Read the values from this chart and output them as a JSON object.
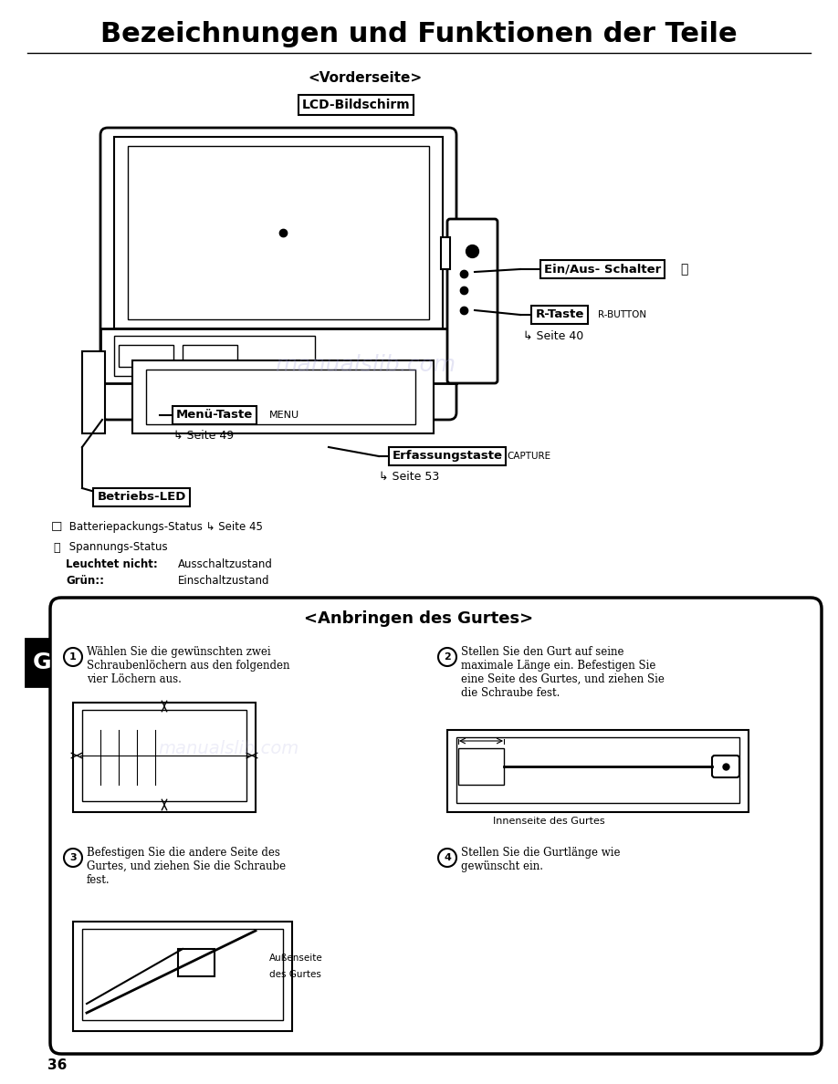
{
  "title": "Bezeichnungen und Funktionen der Teile",
  "bg_color": "#ffffff",
  "page_number": "36",
  "section1_header": "<Vorderseite>",
  "label_lcd": "LCD-Bildschirm",
  "label_ein": "Ein/Aus- Schalter",
  "label_rtaste": "R-Taste",
  "label_rtaste_sub": "R-BUTTON",
  "label_seite40": "Seite 40",
  "label_menu": "Menü-Taste",
  "label_menu_sub": "MENU",
  "label_seite49": "Seite 49",
  "label_erfassung": "Erfassungstaste",
  "label_erfassung_sub": "CAPTURE",
  "label_seite53": "Seite 53",
  "label_betriebs": "Betriebs-LED",
  "text_batterie": "Batteriepackungs-Status",
  "text_seite45": "Seite 45",
  "text_spannung": "Spannungs-Status",
  "text_leuchtet": "Leuchtet nicht:",
  "text_leuchtet2": "Ausschaltzustand",
  "text_gruen": "Grün:",
  "text_gruen2": "Einschaltzustand",
  "section2_header": "<Anbringen des Gurtes>",
  "step1_text": "Wählen Sie die gewünschten zwei\nSchraubenlöchern aus den folgenden\nvier Löchern aus.",
  "step2_text": "Stellen Sie den Gurt auf seine\nmaximale Länge ein. Befestigen Sie\neine Seite des Gurtes, und ziehen Sie\ndie Schraube fest.",
  "step2_sub": "Innenseite des Gurtes",
  "step3_text": "Befestigen Sie die andere Seite des\nGurtes, und ziehen Sie die Schraube\nfest.",
  "step3_sub1": "Außenseite",
  "step3_sub2": "des Gurtes",
  "step4_text": "Stellen Sie die Gurtlänge wie\ngewünscht ein.",
  "watermark": "manualslib.com"
}
